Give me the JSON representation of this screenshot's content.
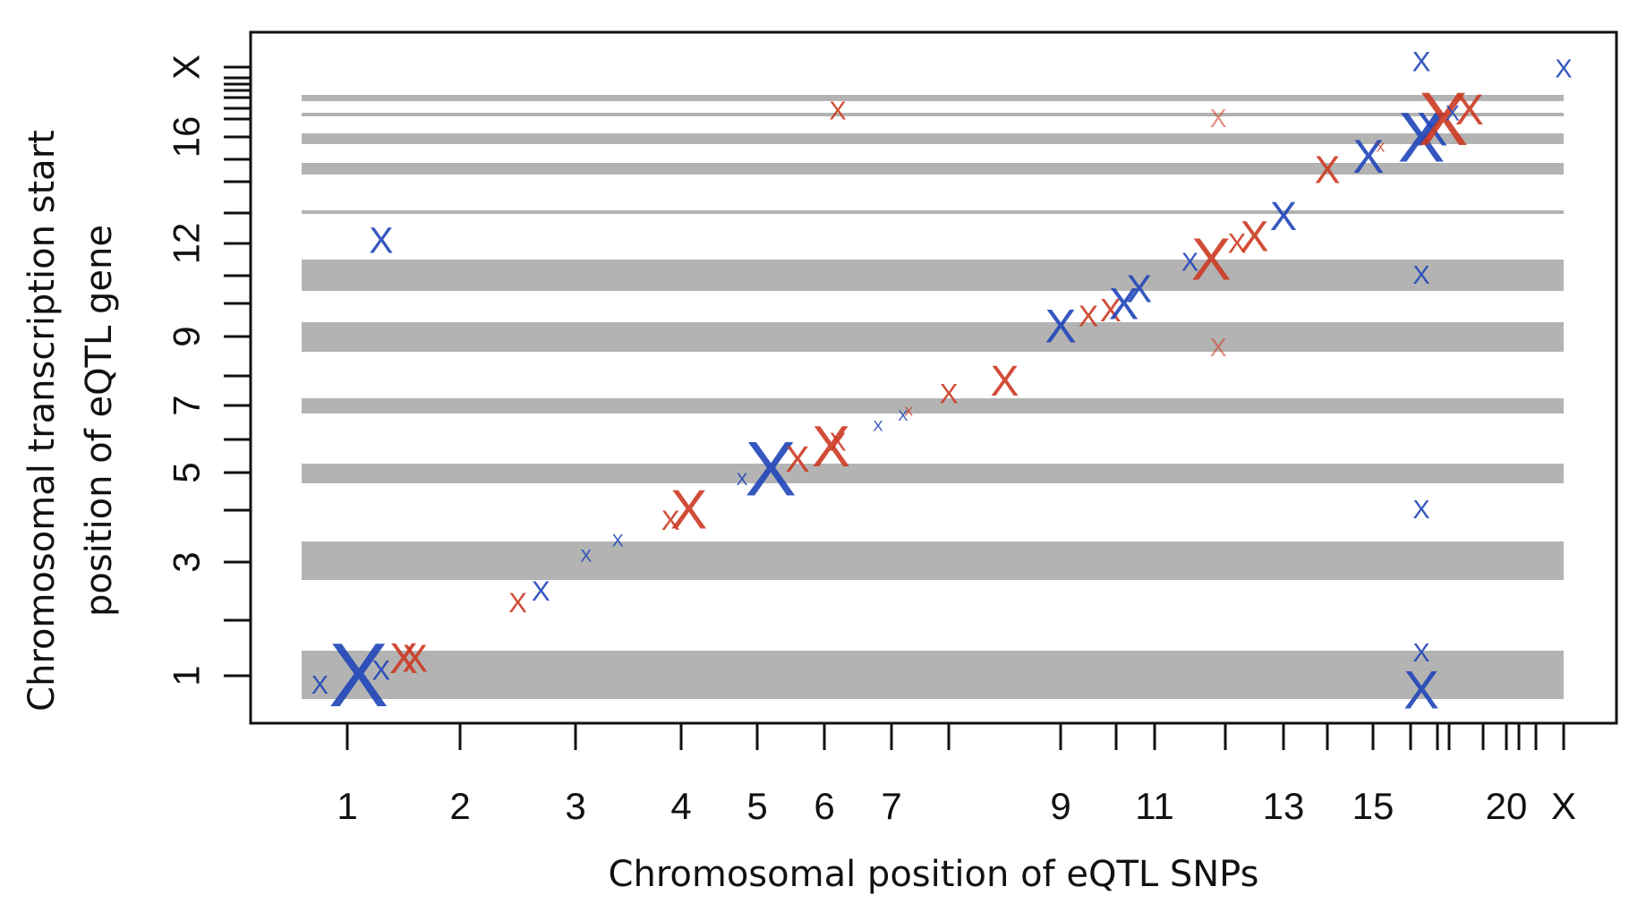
{
  "chart_data": {
    "type": "scatter",
    "xlabel": "Chromosomal position of eQTL SNPs",
    "ylabel": [
      "Chromosomal transcription start",
      "position of eQTL gene"
    ],
    "xlim": [
      0.5,
      23.5
    ],
    "ylim": [
      0.5,
      23.5
    ],
    "x_ticks": [
      1,
      2,
      3,
      4,
      5,
      6,
      7,
      8,
      9,
      10,
      11,
      12,
      13,
      14,
      15,
      16,
      17,
      18,
      19,
      20,
      21,
      22,
      23
    ],
    "x_tick_labels": [
      "1",
      "2",
      "3",
      "4",
      "5",
      "6",
      "7",
      "9",
      "11",
      "13",
      "15",
      "20",
      "X"
    ],
    "y_tick_labels": [
      "1",
      "3",
      "5",
      "7",
      "9",
      "12",
      "16",
      "X"
    ],
    "y_bands": [
      [
        1,
        1
      ],
      [
        3,
        3
      ],
      [
        5,
        5
      ],
      [
        7,
        7
      ],
      [
        9,
        9
      ],
      [
        11,
        11
      ],
      [
        13,
        13
      ],
      [
        15,
        15
      ],
      [
        17,
        17
      ],
      [
        19,
        19
      ],
      [
        21,
        21
      ]
    ],
    "marker": "X",
    "colors": {
      "cis_up": "#cc3a22",
      "cis_down": "#1f45b8"
    },
    "points": [
      {
        "x": 1.1,
        "y": 1.0,
        "color": "#1f45b8",
        "size": 4.2
      },
      {
        "x": 0.7,
        "y": 0.8,
        "color": "#1f45b8",
        "size": 1.2
      },
      {
        "x": 1.3,
        "y": 1.1,
        "color": "#1f45b8",
        "size": 1.3
      },
      {
        "x": 1.5,
        "y": 1.3,
        "color": "#cc3a22",
        "size": 2.0
      },
      {
        "x": 1.6,
        "y": 1.3,
        "color": "#cc3a22",
        "size": 1.8
      },
      {
        "x": 1.3,
        "y": 12.1,
        "color": "#1f45b8",
        "size": 1.7
      },
      {
        "x": 2.5,
        "y": 2.3,
        "color": "#cc3a22",
        "size": 1.3
      },
      {
        "x": 2.7,
        "y": 2.5,
        "color": "#1f45b8",
        "size": 1.3
      },
      {
        "x": 3.1,
        "y": 3.1,
        "color": "#1f45b8",
        "size": 0.8
      },
      {
        "x": 3.4,
        "y": 3.4,
        "color": "#1f45b8",
        "size": 0.8
      },
      {
        "x": 3.9,
        "y": 3.8,
        "color": "#cc3a22",
        "size": 1.3
      },
      {
        "x": 4.1,
        "y": 4.0,
        "color": "#cc3a22",
        "size": 2.6
      },
      {
        "x": 4.8,
        "y": 4.8,
        "color": "#1f45b8",
        "size": 0.8
      },
      {
        "x": 5.2,
        "y": 5.1,
        "color": "#1f45b8",
        "size": 3.6
      },
      {
        "x": 5.6,
        "y": 5.4,
        "color": "#cc3a22",
        "size": 1.7
      },
      {
        "x": 6.1,
        "y": 5.8,
        "color": "#cc3a22",
        "size": 2.7
      },
      {
        "x": 6.2,
        "y": 5.9,
        "color": "#cc3a22",
        "size": 1.2
      },
      {
        "x": 6.2,
        "y": 17.7,
        "color": "#cc3a22",
        "size": 1.2
      },
      {
        "x": 6.8,
        "y": 6.4,
        "color": "#1f45b8",
        "size": 0.7
      },
      {
        "x": 7.2,
        "y": 6.7,
        "color": "#1f45b8",
        "size": 0.7
      },
      {
        "x": 7.3,
        "y": 6.8,
        "color": "#cc3a22",
        "size": 0.6
      },
      {
        "x": 8.0,
        "y": 7.4,
        "color": "#cc3a22",
        "size": 1.3
      },
      {
        "x": 8.5,
        "y": 7.8,
        "color": "#cc3a22",
        "size": 2.0
      },
      {
        "x": 9.0,
        "y": 9.3,
        "color": "#1f45b8",
        "size": 2.2
      },
      {
        "x": 9.5,
        "y": 9.6,
        "color": "#cc3a22",
        "size": 1.4
      },
      {
        "x": 9.9,
        "y": 9.8,
        "color": "#cc3a22",
        "size": 1.5
      },
      {
        "x": 10.2,
        "y": 10.0,
        "color": "#1f45b8",
        "size": 2.1
      },
      {
        "x": 10.6,
        "y": 10.5,
        "color": "#1f45b8",
        "size": 1.8
      },
      {
        "x": 11.5,
        "y": 11.4,
        "color": "#1f45b8",
        "size": 1.2
      },
      {
        "x": 11.8,
        "y": 11.5,
        "color": "#cc3a22",
        "size": 2.8
      },
      {
        "x": 12.2,
        "y": 12.0,
        "color": "#cc3a22",
        "size": 1.3
      },
      {
        "x": 12.5,
        "y": 12.2,
        "color": "#cc3a22",
        "size": 2.0
      },
      {
        "x": 13.0,
        "y": 12.9,
        "color": "#1f45b8",
        "size": 1.9
      },
      {
        "x": 11.9,
        "y": 17.0,
        "color": "#cc3a22",
        "size": 1.2,
        "faded": true
      },
      {
        "x": 11.9,
        "y": 8.7,
        "color": "#cc3a22",
        "size": 1.2,
        "faded": true
      },
      {
        "x": 14.0,
        "y": 14.5,
        "color": "#cc3a22",
        "size": 1.8
      },
      {
        "x": 14.9,
        "y": 15.1,
        "color": "#1f45b8",
        "size": 2.2
      },
      {
        "x": 15.2,
        "y": 15.5,
        "color": "#cc3a22",
        "size": 0.6
      },
      {
        "x": 16.4,
        "y": 16.0,
        "color": "#1f45b8",
        "size": 3.3
      },
      {
        "x": 16.8,
        "y": 16.4,
        "color": "#1f45b8",
        "size": 2.2
      },
      {
        "x": 17.5,
        "y": 17.0,
        "color": "#cc3a22",
        "size": 3.5
      },
      {
        "x": 18.1,
        "y": 17.5,
        "color": "#1f45b8",
        "size": 1.0
      },
      {
        "x": 18.6,
        "y": 17.8,
        "color": "#cc3a22",
        "size": 2.0
      },
      {
        "x": 16.4,
        "y": 23.2,
        "color": "#1f45b8",
        "size": 1.3
      },
      {
        "x": 16.4,
        "y": 11.0,
        "color": "#1f45b8",
        "size": 1.2
      },
      {
        "x": 16.4,
        "y": 4.0,
        "color": "#1f45b8",
        "size": 1.2
      },
      {
        "x": 16.4,
        "y": 1.4,
        "color": "#1f45b8",
        "size": 1.2
      },
      {
        "x": 16.4,
        "y": 0.7,
        "color": "#1f45b8",
        "size": 2.5
      },
      {
        "x": 23.0,
        "y": 22.8,
        "color": "#1f45b8",
        "size": 1.2
      }
    ]
  }
}
